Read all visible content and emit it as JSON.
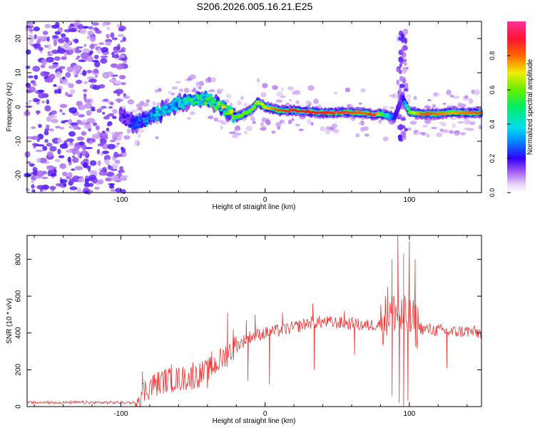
{
  "title": "S206.2026.005.16.21.E25",
  "chart_data": [
    {
      "type": "heatmap",
      "panel": "top",
      "xlabel": "Height of straight line (km)",
      "ylabel": "Frequency (Hz)",
      "xlim": [
        -165,
        150
      ],
      "ylim": [
        -25,
        25
      ],
      "xticks": [
        "-100",
        "0",
        "100"
      ],
      "xtick_values": [
        -100,
        0,
        100
      ],
      "yticks": [
        "-20",
        "-10",
        "0",
        "10",
        "20"
      ],
      "ytick_values": [
        -20,
        -10,
        0,
        10,
        20
      ],
      "colorbar": {
        "label": "Normalized spectral amplitude",
        "ticks": [
          "0.0",
          "0.2",
          "0.4",
          "0.6",
          "0.8"
        ],
        "tick_values": [
          0.0,
          0.2,
          0.4,
          0.6,
          0.8
        ],
        "range": [
          0,
          1
        ]
      },
      "ridge": {
        "name": "dominant frequency track",
        "x": [
          -100,
          -90,
          -80,
          -70,
          -60,
          -50,
          -40,
          -30,
          -20,
          -10,
          -5,
          0,
          10,
          20,
          40,
          60,
          70,
          75,
          80,
          90,
          95,
          100,
          110,
          120,
          130,
          140,
          150
        ],
        "y": [
          -2.5,
          -5,
          -3,
          -1,
          1,
          2,
          2.5,
          0,
          -3,
          -1,
          1.5,
          0,
          -1,
          -1,
          -1.7,
          -1.5,
          -1.8,
          -2.3,
          -2,
          -3,
          3,
          -1.5,
          -2,
          -2,
          -1.5,
          -1.7,
          -1.6
        ],
        "amp": [
          0.15,
          0.2,
          0.3,
          0.35,
          0.4,
          0.45,
          0.45,
          0.55,
          0.6,
          0.6,
          0.65,
          0.7,
          0.85,
          0.9,
          0.9,
          0.85,
          0.8,
          0.95,
          0.6,
          0.2,
          0.15,
          0.6,
          0.85,
          0.8,
          0.75,
          0.8,
          0.85
        ]
      }
    },
    {
      "type": "line",
      "panel": "bottom",
      "series_name": "SNR",
      "color": "#ee3333",
      "xlabel": "Height of straight line (km)",
      "ylabel": "SNR (10 * v/v)",
      "xlim": [
        -165,
        150
      ],
      "ylim": [
        0,
        930
      ],
      "xticks": [
        "-100",
        "0",
        "100"
      ],
      "xtick_values": [
        -100,
        0,
        100
      ],
      "yticks": [
        "0",
        "200",
        "400",
        "600",
        "800"
      ],
      "ytick_values": [
        0,
        200,
        400,
        600,
        800
      ],
      "envelope_x": [
        -165,
        -100,
        -90,
        -80,
        -70,
        -60,
        -50,
        -40,
        -30,
        -20,
        -10,
        0,
        10,
        20,
        30,
        40,
        50,
        60,
        70,
        80,
        85,
        90,
        95,
        100,
        105,
        110,
        120,
        130,
        140,
        150
      ],
      "envelope_y": [
        20,
        25,
        40,
        110,
        140,
        150,
        160,
        190,
        260,
        330,
        380,
        400,
        415,
        430,
        455,
        460,
        455,
        450,
        440,
        450,
        500,
        520,
        480,
        470,
        440,
        420,
        415,
        405,
        410,
        400
      ],
      "peaks": [
        {
          "x": -85,
          "y": 190
        },
        {
          "x": -65,
          "y": 230
        },
        {
          "x": -50,
          "y": 240
        },
        {
          "x": -37,
          "y": 300
        },
        {
          "x": -26,
          "y": 510
        },
        {
          "x": -22,
          "y": 420
        },
        {
          "x": -13,
          "y": 470
        },
        {
          "x": -7,
          "y": 500
        },
        {
          "x": 12,
          "y": 510
        },
        {
          "x": 33,
          "y": 560
        },
        {
          "x": 55,
          "y": 520
        },
        {
          "x": 85,
          "y": 650
        },
        {
          "x": 88,
          "y": 800
        },
        {
          "x": 92,
          "y": 930
        },
        {
          "x": 96,
          "y": 830
        },
        {
          "x": 100,
          "y": 900
        },
        {
          "x": 104,
          "y": 800
        }
      ],
      "dips": [
        {
          "x": -40,
          "y": 100
        },
        {
          "x": -12,
          "y": 140
        },
        {
          "x": 3,
          "y": 120
        },
        {
          "x": 34,
          "y": 200
        },
        {
          "x": 62,
          "y": 280
        },
        {
          "x": 88,
          "y": 60
        },
        {
          "x": 93,
          "y": 20
        },
        {
          "x": 96,
          "y": 0
        },
        {
          "x": 99,
          "y": 30
        },
        {
          "x": 126,
          "y": 210
        }
      ]
    }
  ]
}
